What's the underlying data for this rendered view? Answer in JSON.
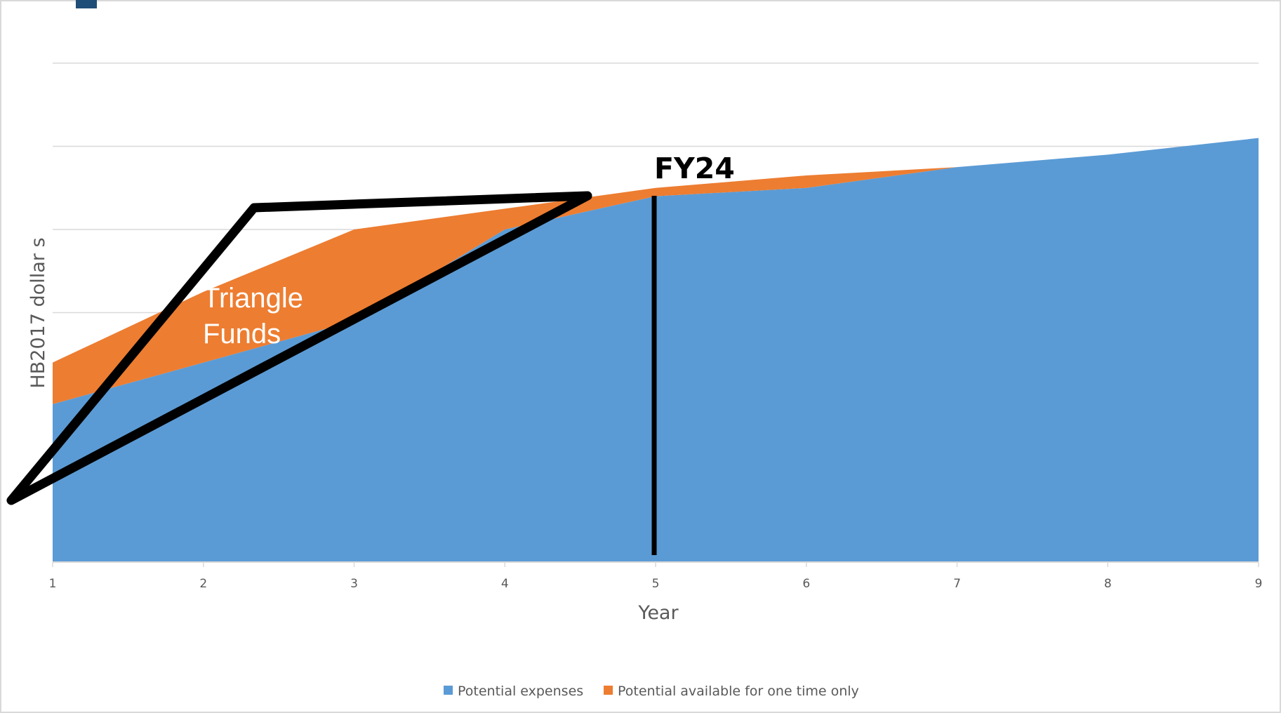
{
  "chart_data": {
    "type": "area",
    "stacked": true,
    "x": [
      1,
      2,
      3,
      4,
      5,
      6,
      7,
      8,
      9
    ],
    "series": [
      {
        "name": "Potential expenses",
        "color": "#5b9bd5",
        "values": [
          3.8,
          4.8,
          5.8,
          8.0,
          8.8,
          9.0,
          9.5,
          9.8,
          10.2
        ]
      },
      {
        "name": "Potential available for one time only",
        "color": "#ed7d31",
        "values": [
          1.0,
          1.7,
          2.2,
          0.5,
          0.2,
          0.3,
          0,
          0,
          0
        ]
      }
    ],
    "xlabel": "Year",
    "ylabel": "HB2017 dollar s",
    "ylim": [
      0,
      12
    ],
    "y_gridlines": [
      2,
      4,
      6,
      8,
      10,
      12
    ],
    "y_tick_labels_shown": false,
    "legend_position": "bottom",
    "grid": true,
    "annotations": {
      "triangle_label": [
        "Triangle",
        "Funds"
      ],
      "marker_label": "FY24",
      "marker_x": 5
    }
  }
}
